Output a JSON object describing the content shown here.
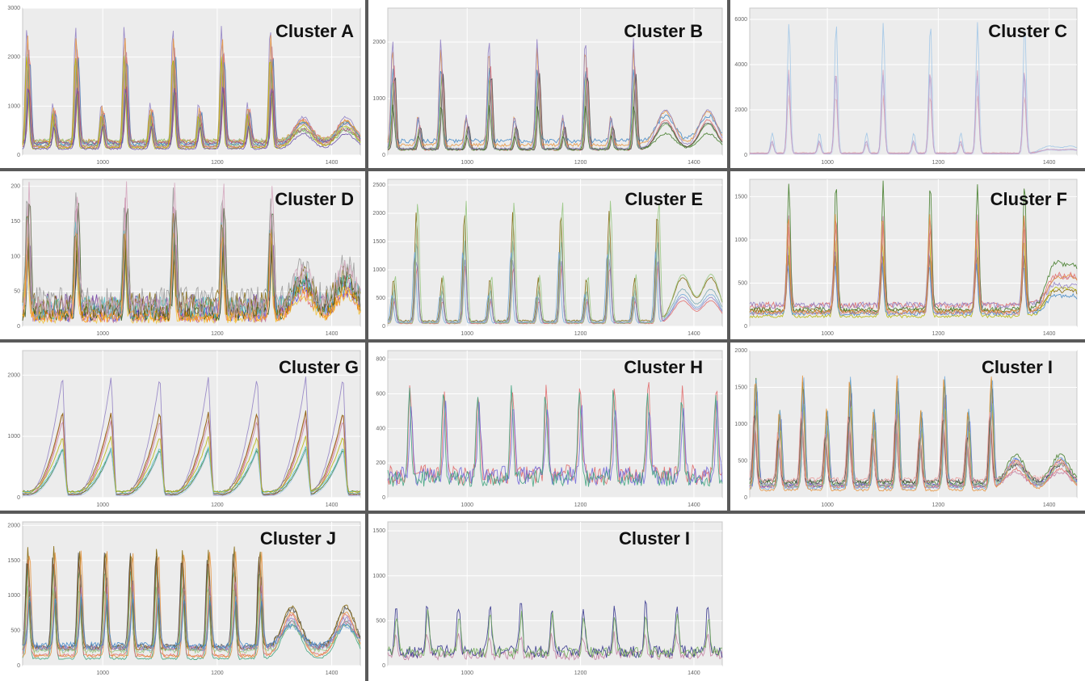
{
  "figure": {
    "panels": [
      {
        "title": "Cluster A"
      },
      {
        "title": "Cluster B"
      },
      {
        "title": "Cluster C"
      },
      {
        "title": "Cluster D"
      },
      {
        "title": "Cluster E"
      },
      {
        "title": "Cluster F"
      },
      {
        "title": "Cluster G"
      },
      {
        "title": "Cluster H"
      },
      {
        "title": "Cluster I"
      },
      {
        "title": "Cluster J"
      },
      {
        "title": "Cluster I"
      }
    ]
  },
  "chart_data": [
    {
      "type": "line",
      "title": "Cluster A",
      "xticks": [
        1000,
        1200,
        1400
      ],
      "xlim": [
        860,
        1450
      ],
      "yticks": [
        0,
        1000,
        2000,
        3000
      ],
      "ylim": [
        0,
        3000
      ],
      "grid": true,
      "colors": [
        "#6aa84f",
        "#8e7cc3",
        "#e06666",
        "#c9a227",
        "#76a5af",
        "#c27ba0",
        "#3d85c6",
        "#e69138",
        "#93c47d",
        "#a64d79",
        "#b6b500",
        "#674ea7"
      ],
      "series_count": 12,
      "peak_x": [
        870,
        955,
        1040,
        1125,
        1210,
        1295
      ],
      "minor_peak_x": [
        915,
        1000,
        1085,
        1170,
        1255
      ],
      "peak_height": 2500,
      "minor_height": 900,
      "baseline": 300,
      "hump_x": [
        1350,
        1425
      ],
      "hump_height": 600
    },
    {
      "type": "line",
      "title": "Cluster B",
      "xticks": [
        1000,
        1200,
        1400
      ],
      "xlim": [
        860,
        1450
      ],
      "yticks": [
        0,
        1000,
        2000
      ],
      "ylim": [
        0,
        2600
      ],
      "grid": true,
      "colors": [
        "#e06666",
        "#38761d",
        "#3d85c6",
        "#6aa84f",
        "#434343",
        "#e69138",
        "#8e7cc3"
      ],
      "series_count": 7,
      "peak_x": [
        870,
        955,
        1040,
        1125,
        1210,
        1295
      ],
      "minor_peak_x": [
        915,
        1000,
        1085,
        1170,
        1255
      ],
      "peak_height": 2000,
      "minor_height": 600,
      "baseline": 250,
      "hump_x": [
        1350,
        1425
      ],
      "hump_height": 700
    },
    {
      "type": "line",
      "title": "Cluster C",
      "xticks": [
        1000,
        1200,
        1400
      ],
      "xlim": [
        860,
        1450
      ],
      "yticks": [
        0,
        2000,
        4000,
        6000
      ],
      "ylim": [
        0,
        6500
      ],
      "grid": true,
      "colors": [
        "#9fc5e8",
        "#ea9999",
        "#cfe2f3",
        "#d5a6bd",
        "#b4a7d6"
      ],
      "series_count": 5,
      "peak_x": [
        930,
        1015,
        1100,
        1185,
        1270,
        1355
      ],
      "minor_peak_x": [
        900,
        985,
        1070,
        1155,
        1240
      ],
      "peak_height": 5800,
      "minor_height": 900,
      "baseline": 100,
      "hump_x": [
        1400,
        1440
      ],
      "hump_height": 300
    },
    {
      "type": "line",
      "title": "Cluster D",
      "xticks": [
        1000,
        1200,
        1400
      ],
      "xlim": [
        860,
        1450
      ],
      "yticks": [
        0,
        50,
        100,
        150,
        200
      ],
      "ylim": [
        0,
        210
      ],
      "grid": true,
      "colors": [
        "#3c3cd8",
        "#6a329f",
        "#e06666",
        "#93c47d",
        "#f1c232",
        "#c27ba0",
        "#274e13",
        "#46bdc6",
        "#ff9900",
        "#7f6000",
        "#999999",
        "#d5a6bd"
      ],
      "series_count": 12,
      "peak_x": [
        870,
        955,
        1040,
        1125,
        1210,
        1295
      ],
      "minor_peak_x": [],
      "peak_height": 180,
      "minor_height": 0,
      "baseline": 35,
      "hump_x": [
        1350,
        1425
      ],
      "hump_height": 60
    },
    {
      "type": "line",
      "title": "Cluster E",
      "xticks": [
        1000,
        1200,
        1400
      ],
      "xlim": [
        860,
        1450
      ],
      "yticks": [
        0,
        500,
        1000,
        1500,
        2000,
        2500
      ],
      "ylim": [
        0,
        2600
      ],
      "grid": true,
      "colors": [
        "#7f6000",
        "#6fa8dc",
        "#e06666",
        "#76a5af",
        "#8e7cc3",
        "#93c47d"
      ],
      "series_count": 6,
      "peak_x": [
        910,
        995,
        1080,
        1165,
        1250,
        1335
      ],
      "minor_peak_x": [
        870,
        955,
        1040,
        1125,
        1210,
        1295
      ],
      "peak_height": 2300,
      "minor_height": 900,
      "baseline": 100,
      "hump_x": [
        1380,
        1430
      ],
      "hump_height": 900
    },
    {
      "type": "line",
      "title": "Cluster F",
      "xticks": [
        1000,
        1200,
        1400
      ],
      "xlim": [
        860,
        1450
      ],
      "yticks": [
        0,
        500,
        1000,
        1500
      ],
      "ylim": [
        0,
        1700
      ],
      "grid": true,
      "colors": [
        "#7f6000",
        "#b6b500",
        "#3d85c6",
        "#e06666",
        "#8e7cc3",
        "#38761d",
        "#c27ba0",
        "#e69138"
      ],
      "series_count": 8,
      "peak_x": [
        930,
        1015,
        1100,
        1185,
        1270,
        1355
      ],
      "minor_peak_x": [],
      "peak_height": 1500,
      "minor_height": 0,
      "baseline": 250,
      "hump_x": [
        1410,
        1445
      ],
      "hump_height": 500
    },
    {
      "type": "line",
      "title": "Cluster G",
      "xticks": [
        1000,
        1200,
        1400
      ],
      "xlim": [
        860,
        1450
      ],
      "yticks": [
        0,
        1000,
        2000
      ],
      "ylim": [
        0,
        2400
      ],
      "grid": true,
      "colors": [
        "#e06666",
        "#7f6000",
        "#8e7cc3",
        "#c27ba0",
        "#38761d",
        "#46bdc6",
        "#9fc5e8",
        "#b6b500"
      ],
      "series_count": 8,
      "peak_x": [
        930,
        1015,
        1100,
        1185,
        1270,
        1355,
        1420
      ],
      "minor_peak_x": [],
      "peak_height": 2000,
      "minor_height": 0,
      "baseline": 100,
      "hump_x": [],
      "hump_height": 0,
      "shape": "sawtooth"
    },
    {
      "type": "line",
      "title": "Cluster H",
      "xticks": [
        1000,
        1200,
        1400
      ],
      "xlim": [
        860,
        1450
      ],
      "yticks": [
        0,
        200,
        400,
        600,
        800
      ],
      "ylim": [
        0,
        850
      ],
      "grid": true,
      "colors": [
        "#e06666",
        "#6d63d8",
        "#38a17a"
      ],
      "series_count": 3,
      "peak_x": [
        900,
        960,
        1020,
        1080,
        1140,
        1200,
        1260,
        1320,
        1380,
        1440
      ],
      "minor_peak_x": [],
      "peak_height": 550,
      "minor_height": 0,
      "baseline": 150,
      "hump_x": [],
      "hump_height": 0,
      "shape": "noisy"
    },
    {
      "type": "line",
      "title": "Cluster I",
      "xticks": [
        1000,
        1200,
        1400
      ],
      "xlim": [
        860,
        1450
      ],
      "yticks": [
        0,
        500,
        1000,
        1500,
        2000
      ],
      "ylim": [
        0,
        2000
      ],
      "grid": true,
      "colors": [
        "#e06666",
        "#3c3cd8",
        "#38761d",
        "#8e7cc3",
        "#6fa8dc",
        "#c27ba0",
        "#e69138",
        "#434343",
        "#93c47d",
        "#ea9999"
      ],
      "series_count": 10,
      "peak_x": [
        870,
        955,
        1040,
        1125,
        1210,
        1295
      ],
      "minor_peak_x": [
        913,
        998,
        1083,
        1168,
        1253
      ],
      "peak_height": 1700,
      "minor_height": 1200,
      "baseline": 250,
      "hump_x": [
        1340,
        1420
      ],
      "hump_height": 450
    },
    {
      "type": "line",
      "title": "Cluster J",
      "xticks": [
        1000,
        1200,
        1400
      ],
      "xlim": [
        860,
        1450
      ],
      "yticks": [
        0,
        500,
        1000,
        1500,
        2000
      ],
      "ylim": [
        0,
        2050
      ],
      "grid": true,
      "colors": [
        "#38a17a",
        "#e06666",
        "#434343",
        "#8e7cc3",
        "#7f6000",
        "#6fa8dc",
        "#c27ba0",
        "#e69138",
        "#93c47d",
        "#3d85c6"
      ],
      "series_count": 10,
      "peak_x": [
        870,
        915,
        960,
        1005,
        1050,
        1095,
        1140,
        1185,
        1230,
        1275
      ],
      "minor_peak_x": [],
      "peak_height": 1700,
      "minor_height": 0,
      "baseline": 300,
      "hump_x": [
        1330,
        1425
      ],
      "hump_height": 700
    },
    {
      "type": "line",
      "title": "Cluster I",
      "xticks": [
        1000,
        1200,
        1400
      ],
      "xlim": [
        860,
        1450
      ],
      "yticks": [
        0,
        500,
        1000,
        1500
      ],
      "ylim": [
        0,
        1600
      ],
      "grid": true,
      "colors": [
        "#c27ba0",
        "#2d2d8a",
        "#6aa84f"
      ],
      "series_count": 3,
      "peak_x": [
        875,
        930,
        985,
        1040,
        1095,
        1150,
        1205,
        1260,
        1315,
        1370,
        1425
      ],
      "minor_peak_x": [],
      "peak_height": 600,
      "minor_height": 0,
      "baseline": 150,
      "hump_x": [],
      "hump_height": 0,
      "shape": "spiky"
    }
  ]
}
